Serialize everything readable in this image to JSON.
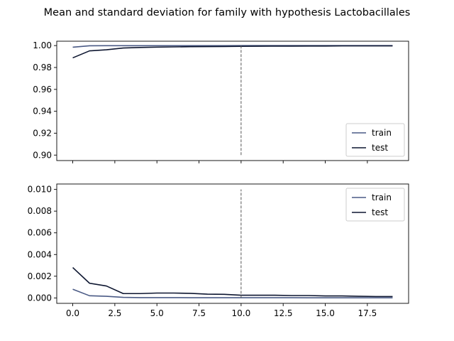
{
  "title": "Mean and standard deviation for family with hypothesis Lactobacillales",
  "colors": {
    "train": "#4a5a85",
    "test": "#0d1630",
    "marker_line": "#555555"
  },
  "chart_data": [
    {
      "type": "line",
      "panel": "top",
      "xlim": [
        -0.95,
        19.95
      ],
      "ylim": [
        0.895,
        1.004
      ],
      "xticks": [
        0.0,
        2.5,
        5.0,
        7.5,
        10.0,
        12.5,
        15.0,
        17.5
      ],
      "xtick_labels_shown": false,
      "yticks": [
        0.9,
        0.92,
        0.94,
        0.96,
        0.98,
        1.0
      ],
      "ytick_labels": [
        "0.90",
        "0.92",
        "0.94",
        "0.96",
        "0.98",
        "1.00"
      ],
      "vline": {
        "x": 10,
        "y0": 0.9,
        "y1": 1.0,
        "style": "dashed"
      },
      "legend_position": "lower-right",
      "x": [
        0,
        1,
        2,
        3,
        4,
        5,
        6,
        7,
        8,
        9,
        10,
        11,
        12,
        13,
        14,
        15,
        16,
        17,
        18,
        19
      ],
      "series": [
        {
          "name": "train",
          "values": [
            0.9985,
            0.9998,
            0.9999,
            0.9999,
            0.9999,
            0.99995,
            0.99995,
            0.99995,
            0.99995,
            0.99995,
            0.99996,
            0.99996,
            0.99996,
            0.99997,
            0.99997,
            0.99997,
            0.99998,
            0.99998,
            0.99998,
            0.99998
          ]
        },
        {
          "name": "test",
          "values": [
            0.9888,
            0.9952,
            0.9962,
            0.9978,
            0.9983,
            0.9986,
            0.9988,
            0.999,
            0.9991,
            0.9992,
            0.9993,
            0.9994,
            0.9995,
            0.9995,
            0.9996,
            0.9996,
            0.9997,
            0.9997,
            0.9997,
            0.9997
          ]
        }
      ]
    },
    {
      "type": "line",
      "panel": "bottom",
      "xlim": [
        -0.95,
        19.95
      ],
      "ylim": [
        -0.0005,
        0.0105
      ],
      "xticks": [
        0.0,
        2.5,
        5.0,
        7.5,
        10.0,
        12.5,
        15.0,
        17.5
      ],
      "xtick_labels": [
        "0.0",
        "2.5",
        "5.0",
        "7.5",
        "10.0",
        "12.5",
        "15.0",
        "17.5"
      ],
      "yticks": [
        0.0,
        0.002,
        0.004,
        0.006,
        0.008,
        0.01
      ],
      "ytick_labels": [
        "0.000",
        "0.002",
        "0.004",
        "0.006",
        "0.008",
        "0.010"
      ],
      "vline": {
        "x": 10,
        "y0": 0.0,
        "y1": 0.01,
        "style": "dashed"
      },
      "legend_position": "upper-right",
      "x": [
        0,
        1,
        2,
        3,
        4,
        5,
        6,
        7,
        8,
        9,
        10,
        11,
        12,
        13,
        14,
        15,
        16,
        17,
        18,
        19
      ],
      "series": [
        {
          "name": "train",
          "values": [
            0.0008,
            0.0002,
            0.00015,
            5e-05,
            3e-05,
            3e-05,
            3e-05,
            2e-05,
            2e-05,
            2e-05,
            2e-05,
            2e-05,
            2e-05,
            2e-05,
            1e-05,
            1e-05,
            1e-05,
            1e-05,
            1e-05,
            1e-05
          ]
        },
        {
          "name": "test",
          "values": [
            0.0028,
            0.00135,
            0.0011,
            0.0004,
            0.0004,
            0.00045,
            0.00045,
            0.00042,
            0.00035,
            0.00033,
            0.00025,
            0.00025,
            0.00025,
            0.00022,
            0.00022,
            0.00018,
            0.00018,
            0.00015,
            0.00013,
            0.00013
          ]
        }
      ]
    }
  ]
}
